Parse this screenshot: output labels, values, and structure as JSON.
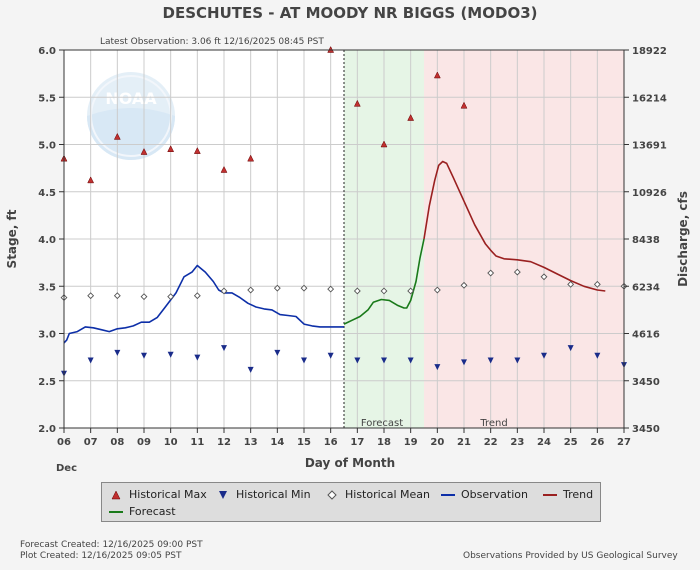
{
  "chart_data": {
    "type": "line",
    "title": "DESCHUTES - AT MOODY NR BIGGS  (MODO3)",
    "subtitle": "Latest Observation: 3.06 ft 12/16/2025 08:45 PST",
    "xlabel": "Day of Month",
    "ylabel": "Stage, ft",
    "y2label": "Discharge, cfs",
    "month_label": "Dec",
    "xlim": [
      6,
      27
    ],
    "ylim": [
      2.0,
      6.0
    ],
    "x_ticks": [
      "06",
      "07",
      "08",
      "09",
      "10",
      "11",
      "12",
      "13",
      "14",
      "15",
      "16",
      "17",
      "18",
      "19",
      "20",
      "21",
      "22",
      "23",
      "24",
      "25",
      "26",
      "27"
    ],
    "y_ticks": [
      "2.0",
      "2.5",
      "3.0",
      "3.5",
      "4.0",
      "4.5",
      "5.0",
      "5.5",
      "6.0"
    ],
    "y2_ticks": [
      {
        "stage": 2.0,
        "label": "3450"
      },
      {
        "stage": 2.5,
        "label": "3450"
      },
      {
        "stage": 3.0,
        "label": "4616"
      },
      {
        "stage": 3.5,
        "label": "6234"
      },
      {
        "stage": 4.0,
        "label": "8438"
      },
      {
        "stage": 4.5,
        "label": "10926"
      },
      {
        "stage": 5.0,
        "label": "13691"
      },
      {
        "stage": 5.5,
        "label": "16214"
      },
      {
        "stage": 6.0,
        "label": "18922"
      }
    ],
    "regions": [
      {
        "name": "Forecast",
        "from": 16.5,
        "to": 19.5,
        "color": "#e6f5e6"
      },
      {
        "name": "Trend",
        "from": 19.5,
        "to": 27,
        "color": "#fae6e6"
      }
    ],
    "now_x": 16.5,
    "series": [
      {
        "name": "Historical Max",
        "style": "triangle-up",
        "color": "#c03030",
        "points": [
          [
            6,
            4.85
          ],
          [
            7,
            4.62
          ],
          [
            8,
            5.08
          ],
          [
            9,
            4.92
          ],
          [
            10,
            4.95
          ],
          [
            11,
            4.93
          ],
          [
            12,
            4.73
          ],
          [
            13,
            4.85
          ],
          [
            16,
            6.0
          ],
          [
            17,
            5.43
          ],
          [
            18,
            5.0
          ],
          [
            19,
            5.28
          ],
          [
            20,
            5.73
          ],
          [
            21,
            5.41
          ]
        ]
      },
      {
        "name": "Historical Min",
        "style": "triangle-down",
        "color": "#1a2c8a",
        "points": [
          [
            6,
            2.58
          ],
          [
            7,
            2.72
          ],
          [
            8,
            2.8
          ],
          [
            9,
            2.77
          ],
          [
            10,
            2.78
          ],
          [
            11,
            2.75
          ],
          [
            12,
            2.85
          ],
          [
            13,
            2.62
          ],
          [
            14,
            2.8
          ],
          [
            15,
            2.72
          ],
          [
            16,
            2.77
          ],
          [
            17,
            2.72
          ],
          [
            18,
            2.72
          ],
          [
            19,
            2.72
          ],
          [
            20,
            2.65
          ],
          [
            21,
            2.7
          ],
          [
            22,
            2.72
          ],
          [
            23,
            2.72
          ],
          [
            24,
            2.77
          ],
          [
            25,
            2.85
          ],
          [
            26,
            2.77
          ],
          [
            27,
            2.67
          ]
        ]
      },
      {
        "name": "Historical Mean",
        "style": "diamond",
        "color": "#555555",
        "points": [
          [
            6,
            3.38
          ],
          [
            7,
            3.4
          ],
          [
            8,
            3.4
          ],
          [
            9,
            3.39
          ],
          [
            10,
            3.39
          ],
          [
            11,
            3.4
          ],
          [
            12,
            3.45
          ],
          [
            13,
            3.46
          ],
          [
            14,
            3.48
          ],
          [
            15,
            3.48
          ],
          [
            16,
            3.47
          ],
          [
            17,
            3.45
          ],
          [
            18,
            3.45
          ],
          [
            19,
            3.45
          ],
          [
            20,
            3.46
          ],
          [
            21,
            3.51
          ],
          [
            22,
            3.64
          ],
          [
            23,
            3.65
          ],
          [
            24,
            3.6
          ],
          [
            25,
            3.52
          ],
          [
            26,
            3.52
          ],
          [
            27,
            3.5
          ]
        ]
      },
      {
        "name": "Observation",
        "style": "line",
        "color": "#0d2fa8",
        "points": [
          [
            6,
            2.9
          ],
          [
            6.1,
            2.93
          ],
          [
            6.2,
            3.0
          ],
          [
            6.5,
            3.02
          ],
          [
            6.8,
            3.07
          ],
          [
            7.1,
            3.06
          ],
          [
            7.4,
            3.04
          ],
          [
            7.7,
            3.02
          ],
          [
            8.0,
            3.05
          ],
          [
            8.3,
            3.06
          ],
          [
            8.6,
            3.08
          ],
          [
            8.9,
            3.12
          ],
          [
            9.2,
            3.12
          ],
          [
            9.5,
            3.17
          ],
          [
            9.8,
            3.28
          ],
          [
            10.2,
            3.43
          ],
          [
            10.5,
            3.6
          ],
          [
            10.8,
            3.65
          ],
          [
            11.0,
            3.72
          ],
          [
            11.3,
            3.65
          ],
          [
            11.6,
            3.55
          ],
          [
            11.8,
            3.46
          ],
          [
            12.0,
            3.43
          ],
          [
            12.3,
            3.43
          ],
          [
            12.6,
            3.38
          ],
          [
            12.9,
            3.32
          ],
          [
            13.2,
            3.28
          ],
          [
            13.5,
            3.26
          ],
          [
            13.8,
            3.25
          ],
          [
            14.1,
            3.2
          ],
          [
            14.4,
            3.19
          ],
          [
            14.7,
            3.18
          ],
          [
            15.0,
            3.1
          ],
          [
            15.3,
            3.08
          ],
          [
            15.6,
            3.07
          ],
          [
            16.0,
            3.07
          ],
          [
            16.5,
            3.07
          ]
        ]
      },
      {
        "name": "Forecast",
        "style": "line",
        "color": "#1a7a1a",
        "points": [
          [
            16.5,
            3.1
          ],
          [
            16.8,
            3.14
          ],
          [
            17.1,
            3.18
          ],
          [
            17.4,
            3.25
          ],
          [
            17.6,
            3.33
          ],
          [
            17.9,
            3.36
          ],
          [
            18.2,
            3.35
          ],
          [
            18.5,
            3.3
          ],
          [
            18.75,
            3.27
          ],
          [
            18.85,
            3.27
          ],
          [
            19.0,
            3.35
          ],
          [
            19.2,
            3.55
          ],
          [
            19.35,
            3.8
          ],
          [
            19.5,
            4.0
          ]
        ]
      },
      {
        "name": "Trend",
        "style": "line",
        "color": "#9a2020",
        "points": [
          [
            19.5,
            4.0
          ],
          [
            19.7,
            4.35
          ],
          [
            19.9,
            4.62
          ],
          [
            20.05,
            4.78
          ],
          [
            20.2,
            4.82
          ],
          [
            20.35,
            4.8
          ],
          [
            20.6,
            4.65
          ],
          [
            21.0,
            4.4
          ],
          [
            21.4,
            4.15
          ],
          [
            21.8,
            3.95
          ],
          [
            22.0,
            3.88
          ],
          [
            22.2,
            3.82
          ],
          [
            22.5,
            3.79
          ],
          [
            23.0,
            3.78
          ],
          [
            23.5,
            3.76
          ],
          [
            24.0,
            3.7
          ],
          [
            24.5,
            3.63
          ],
          [
            25.0,
            3.56
          ],
          [
            25.5,
            3.5
          ],
          [
            26.0,
            3.46
          ],
          [
            26.3,
            3.45
          ]
        ]
      }
    ]
  },
  "legend": [
    {
      "label": "Historical Max",
      "icon": "triangle-up-icon"
    },
    {
      "label": "Historical Min",
      "icon": "triangle-down-icon"
    },
    {
      "label": "Historical Mean",
      "icon": "diamond-icon"
    },
    {
      "label": "Observation",
      "icon": "line-icon"
    },
    {
      "label": "Trend",
      "icon": "line-icon"
    },
    {
      "label": "Forecast",
      "icon": "line-icon"
    }
  ],
  "region_labels": {
    "forecast": "Forecast",
    "trend": "Trend"
  },
  "footer": {
    "forecast_created": "Forecast Created: 12/16/2025 09:00 PST",
    "plot_created": "Plot Created: 12/16/2025 09:05 PST",
    "credit": "Observations Provided by US Geological Survey"
  },
  "logo": {
    "text": "NOAA"
  }
}
